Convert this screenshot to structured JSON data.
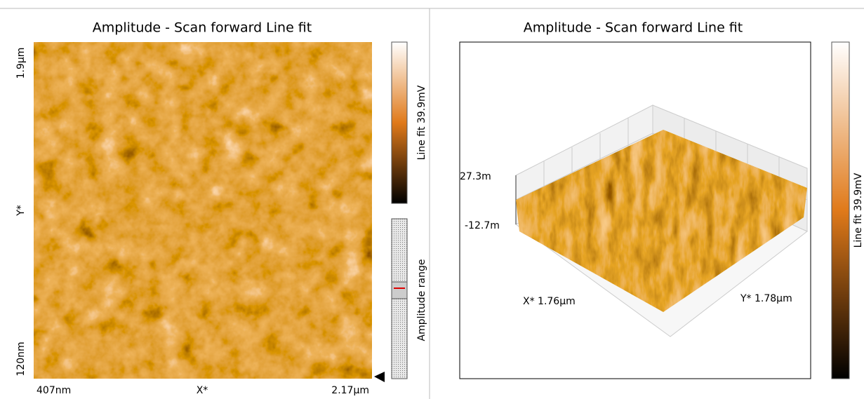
{
  "left_panel": {
    "title": "Amplitude - Scan forward   Line fit",
    "y_top": "1.9µm",
    "y_label": "Y*",
    "y_bottom": "120nm",
    "x_left": "407nm",
    "x_label": "X*",
    "x_right": "2.17µm",
    "colorbar_label": "Line fit 39.9mV",
    "range_label": "Amplitude range"
  },
  "right_panel": {
    "title": "Amplitude - Scan forward   Line fit",
    "z_top": "27.3m",
    "z_bottom": "-12.7m",
    "x_label": "X* 1.76µm",
    "y_label": "Y* 1.78µm",
    "colorbar_label": "Line fit 39.9mV"
  }
}
